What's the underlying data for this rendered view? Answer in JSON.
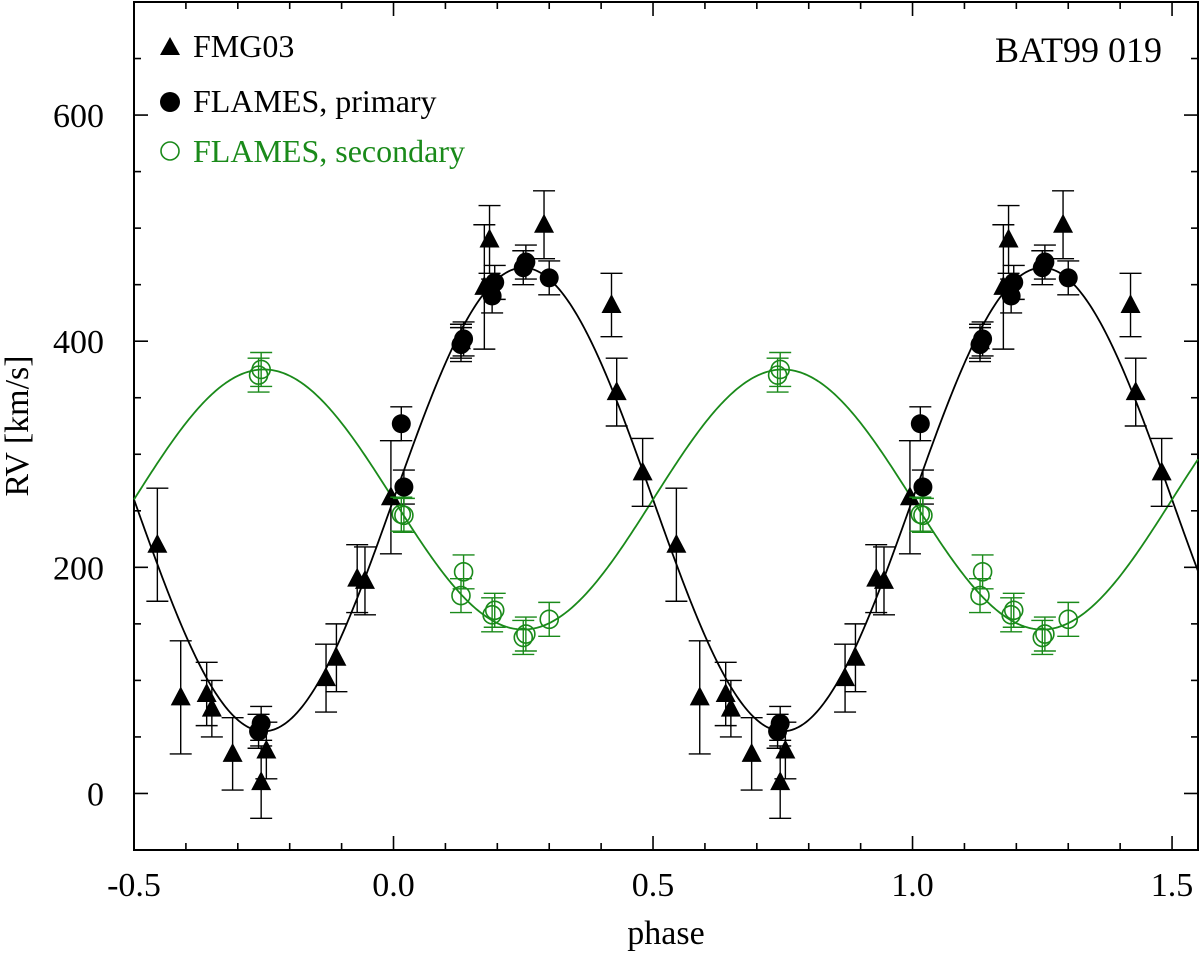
{
  "chart_data": {
    "type": "scatter",
    "title": "BAT99 019",
    "xlabel": "phase",
    "ylabel": "RV [km/s]",
    "xlim": [
      -0.5,
      1.55
    ],
    "ylim": [
      -50,
      700
    ],
    "xticks": [
      -0.5,
      0.0,
      0.5,
      1.0,
      1.5
    ],
    "xtick_labels": [
      "-0.5",
      "0.0",
      "0.5",
      "1.0",
      "1.5"
    ],
    "yticks": [
      0,
      200,
      400,
      600
    ],
    "ytick_labels": [
      "0",
      "200",
      "400",
      "600"
    ],
    "legend": [
      "FMG03",
      "FLAMES, primary",
      "FLAMES, secondary"
    ],
    "colors": {
      "primary": "#000000",
      "secondary": "#1a8a1a"
    },
    "series": [
      {
        "name": "FMG03",
        "marker": "triangle",
        "color": "#000000",
        "points": [
          {
            "x": -0.455,
            "y": 220,
            "err": 50
          },
          {
            "x": -0.41,
            "y": 85,
            "err": 50
          },
          {
            "x": -0.36,
            "y": 88,
            "err": 28
          },
          {
            "x": -0.35,
            "y": 75,
            "err": 25
          },
          {
            "x": -0.31,
            "y": 35,
            "err": 32
          },
          {
            "x": -0.255,
            "y": 10,
            "err": 32
          },
          {
            "x": -0.245,
            "y": 38,
            "err": 25
          },
          {
            "x": -0.13,
            "y": 102,
            "err": 30
          },
          {
            "x": -0.11,
            "y": 120,
            "err": 30
          },
          {
            "x": -0.07,
            "y": 190,
            "err": 30
          },
          {
            "x": -0.055,
            "y": 188,
            "err": 30
          },
          {
            "x": -0.005,
            "y": 262,
            "err": 50
          },
          {
            "x": 0.13,
            "y": 400,
            "err": 15
          },
          {
            "x": 0.175,
            "y": 448,
            "err": 55
          },
          {
            "x": 0.185,
            "y": 490,
            "err": 30
          },
          {
            "x": 0.29,
            "y": 503,
            "err": 30
          },
          {
            "x": 0.42,
            "y": 432,
            "err": 28
          },
          {
            "x": 0.43,
            "y": 355,
            "err": 30
          },
          {
            "x": 0.48,
            "y": 284,
            "err": 30
          }
        ]
      },
      {
        "name": "FLAMES, primary",
        "marker": "filled-circle",
        "color": "#000000",
        "points": [
          {
            "x": -0.26,
            "y": 55,
            "err": 15
          },
          {
            "x": -0.255,
            "y": 62,
            "err": 15
          },
          {
            "x": 0.015,
            "y": 327,
            "err": 15
          },
          {
            "x": 0.02,
            "y": 271,
            "err": 15
          },
          {
            "x": 0.13,
            "y": 397,
            "err": 15
          },
          {
            "x": 0.135,
            "y": 402,
            "err": 15
          },
          {
            "x": 0.19,
            "y": 440,
            "err": 15
          },
          {
            "x": 0.195,
            "y": 452,
            "err": 15
          },
          {
            "x": 0.25,
            "y": 465,
            "err": 15
          },
          {
            "x": 0.255,
            "y": 470,
            "err": 15
          },
          {
            "x": 0.3,
            "y": 456,
            "err": 15
          }
        ]
      },
      {
        "name": "FLAMES, secondary",
        "marker": "open-circle",
        "color": "#1a8a1a",
        "points": [
          {
            "x": -0.26,
            "y": 370,
            "err": 15
          },
          {
            "x": -0.255,
            "y": 375,
            "err": 15
          },
          {
            "x": 0.015,
            "y": 247,
            "err": 15
          },
          {
            "x": 0.02,
            "y": 246,
            "err": 15
          },
          {
            "x": 0.13,
            "y": 175,
            "err": 15
          },
          {
            "x": 0.135,
            "y": 196,
            "err": 15
          },
          {
            "x": 0.19,
            "y": 158,
            "err": 15
          },
          {
            "x": 0.195,
            "y": 162,
            "err": 15
          },
          {
            "x": 0.25,
            "y": 138,
            "err": 15
          },
          {
            "x": 0.255,
            "y": 141,
            "err": 15
          },
          {
            "x": 0.3,
            "y": 154,
            "err": 15
          }
        ]
      }
    ],
    "fits": [
      {
        "name": "primary orbit",
        "color": "#000000",
        "gamma": 260,
        "K": 205,
        "phase_of_max": 0.25
      },
      {
        "name": "secondary orbit",
        "color": "#1a8a1a",
        "gamma": 260,
        "K": 115,
        "phase_of_max": 0.75
      }
    ],
    "repeat_offset": 1.0
  }
}
